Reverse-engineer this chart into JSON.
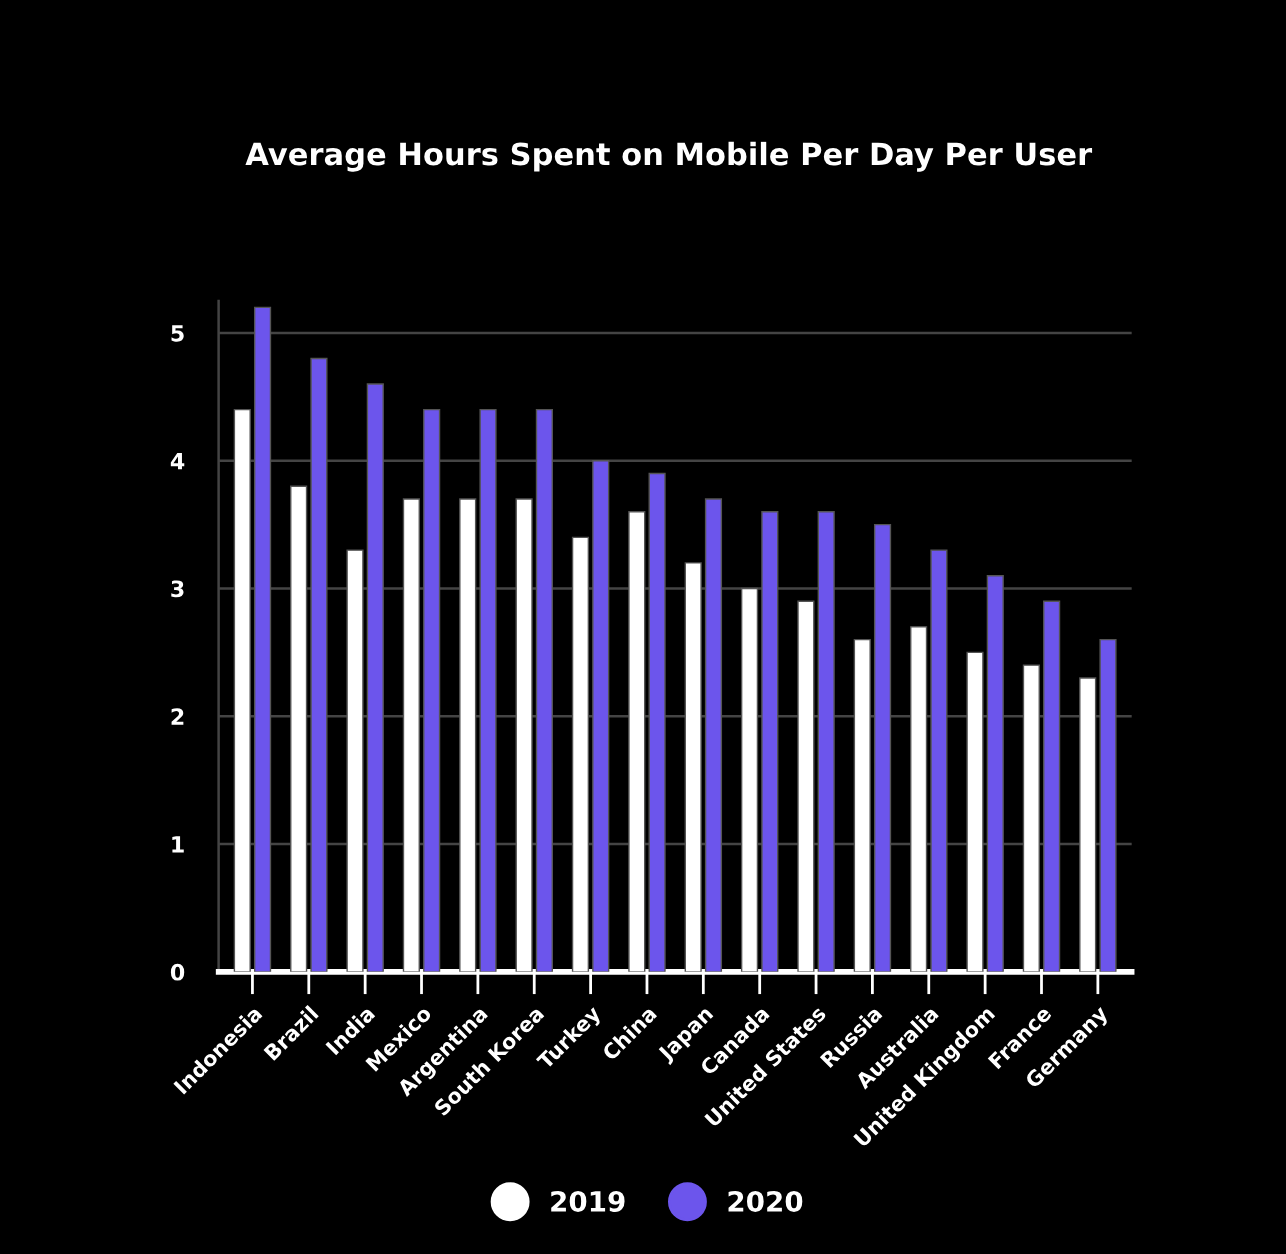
{
  "chart_data": {
    "type": "bar",
    "title": "Average Hours Spent on Mobile Per Day Per User",
    "categories": [
      "Indonesia",
      "Brazil",
      "India",
      "Mexico",
      "Argentina",
      "South Korea",
      "Turkey",
      "China",
      "Japan",
      "Canada",
      "United States",
      "Russia",
      "Australia",
      "United Kingdom",
      "France",
      "Germany"
    ],
    "series": [
      {
        "name": "2019",
        "color": "#ffffff",
        "values": [
          4.4,
          3.8,
          3.3,
          3.7,
          3.7,
          3.7,
          3.4,
          3.6,
          3.2,
          3.0,
          2.9,
          2.6,
          2.7,
          2.5,
          2.4,
          2.3
        ]
      },
      {
        "name": "2020",
        "color": "#6c55ec",
        "values": [
          5.2,
          4.8,
          4.6,
          4.4,
          4.4,
          4.4,
          4.0,
          3.9,
          3.7,
          3.6,
          3.6,
          3.5,
          3.3,
          3.1,
          2.9,
          2.6
        ]
      }
    ],
    "ylim": [
      0,
      5.25
    ],
    "yticks": [
      0,
      1,
      2,
      3,
      4,
      5
    ],
    "grid": "y",
    "legend": "bottom"
  }
}
